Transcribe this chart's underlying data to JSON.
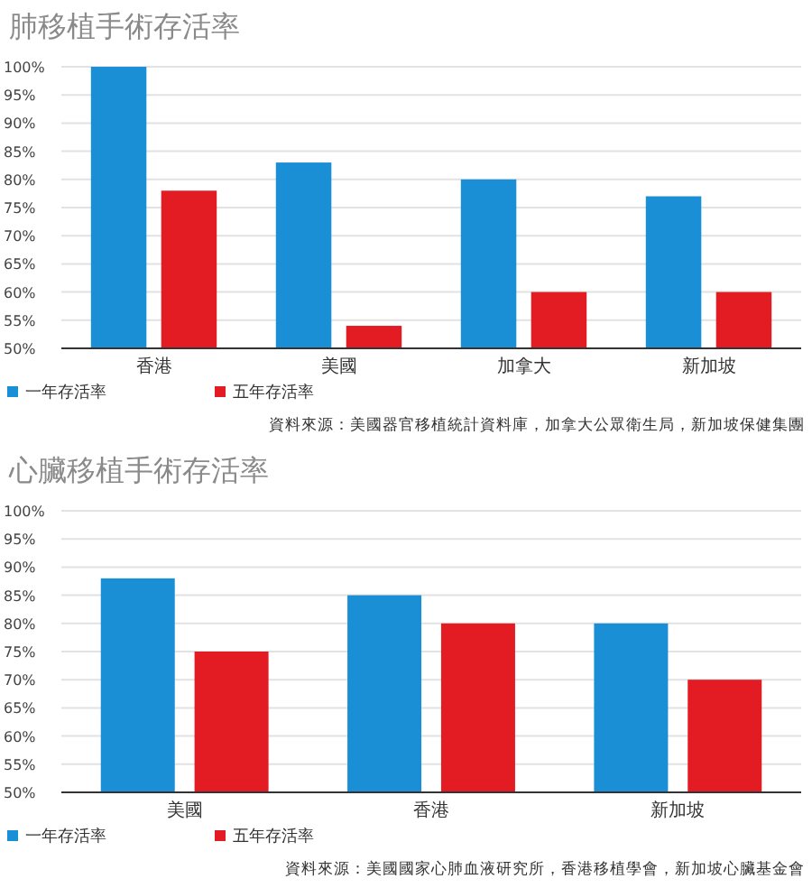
{
  "chart_data": [
    {
      "type": "bar",
      "title": "肺移植手術存活率",
      "categories": [
        "香港",
        "美國",
        "加拿大",
        "新加坡"
      ],
      "series": [
        {
          "name": "一年存活率",
          "color": "#1a8fd6",
          "values": [
            100,
            83,
            80,
            77
          ]
        },
        {
          "name": "五年存活率",
          "color": "#e31b23",
          "values": [
            78,
            54,
            60,
            60
          ]
        }
      ],
      "ylim": [
        50,
        100
      ],
      "yticks": [
        {
          "value": 50,
          "label": "50%"
        },
        {
          "value": 55,
          "label": "55%"
        },
        {
          "value": 60,
          "label": "60%"
        },
        {
          "value": 65,
          "label": "65%"
        },
        {
          "value": 70,
          "label": "70%"
        },
        {
          "value": 75,
          "label": "75%"
        },
        {
          "value": 80,
          "label": "80%"
        },
        {
          "value": 85,
          "label": "85%"
        },
        {
          "value": 90,
          "label": "90%"
        },
        {
          "value": 95,
          "label": "95%"
        },
        {
          "value": 100,
          "label": "100%"
        }
      ],
      "grid": "y",
      "legend": "bottom left",
      "annotations": [
        "資料來源：美國器官移植統計資料庫，加拿大公眾衛生局，新加坡保健集團"
      ]
    },
    {
      "type": "bar",
      "title": "心臟移植手術存活率",
      "categories": [
        "美國",
        "香港",
        "新加坡"
      ],
      "series": [
        {
          "name": "一年存活率",
          "color": "#1a8fd6",
          "values": [
            88,
            85,
            80
          ]
        },
        {
          "name": "五年存活率",
          "color": "#e31b23",
          "values": [
            75,
            80,
            70
          ]
        }
      ],
      "ylim": [
        50,
        100
      ],
      "yticks": [
        {
          "value": 50,
          "label": "50%"
        },
        {
          "value": 55,
          "label": "55%"
        },
        {
          "value": 60,
          "label": "60%"
        },
        {
          "value": 65,
          "label": "65%"
        },
        {
          "value": 70,
          "label": "70%"
        },
        {
          "value": 75,
          "label": "75%"
        },
        {
          "value": 80,
          "label": "80%"
        },
        {
          "value": 85,
          "label": "85%"
        },
        {
          "value": 90,
          "label": "90%"
        },
        {
          "value": 95,
          "label": "95%"
        },
        {
          "value": 100,
          "label": "100%"
        }
      ],
      "grid": "y",
      "legend": "bottom left",
      "annotations": [
        "資料來源：美國國家心肺血液研究所，香港移植學會，新加坡心臟基金會"
      ]
    }
  ]
}
